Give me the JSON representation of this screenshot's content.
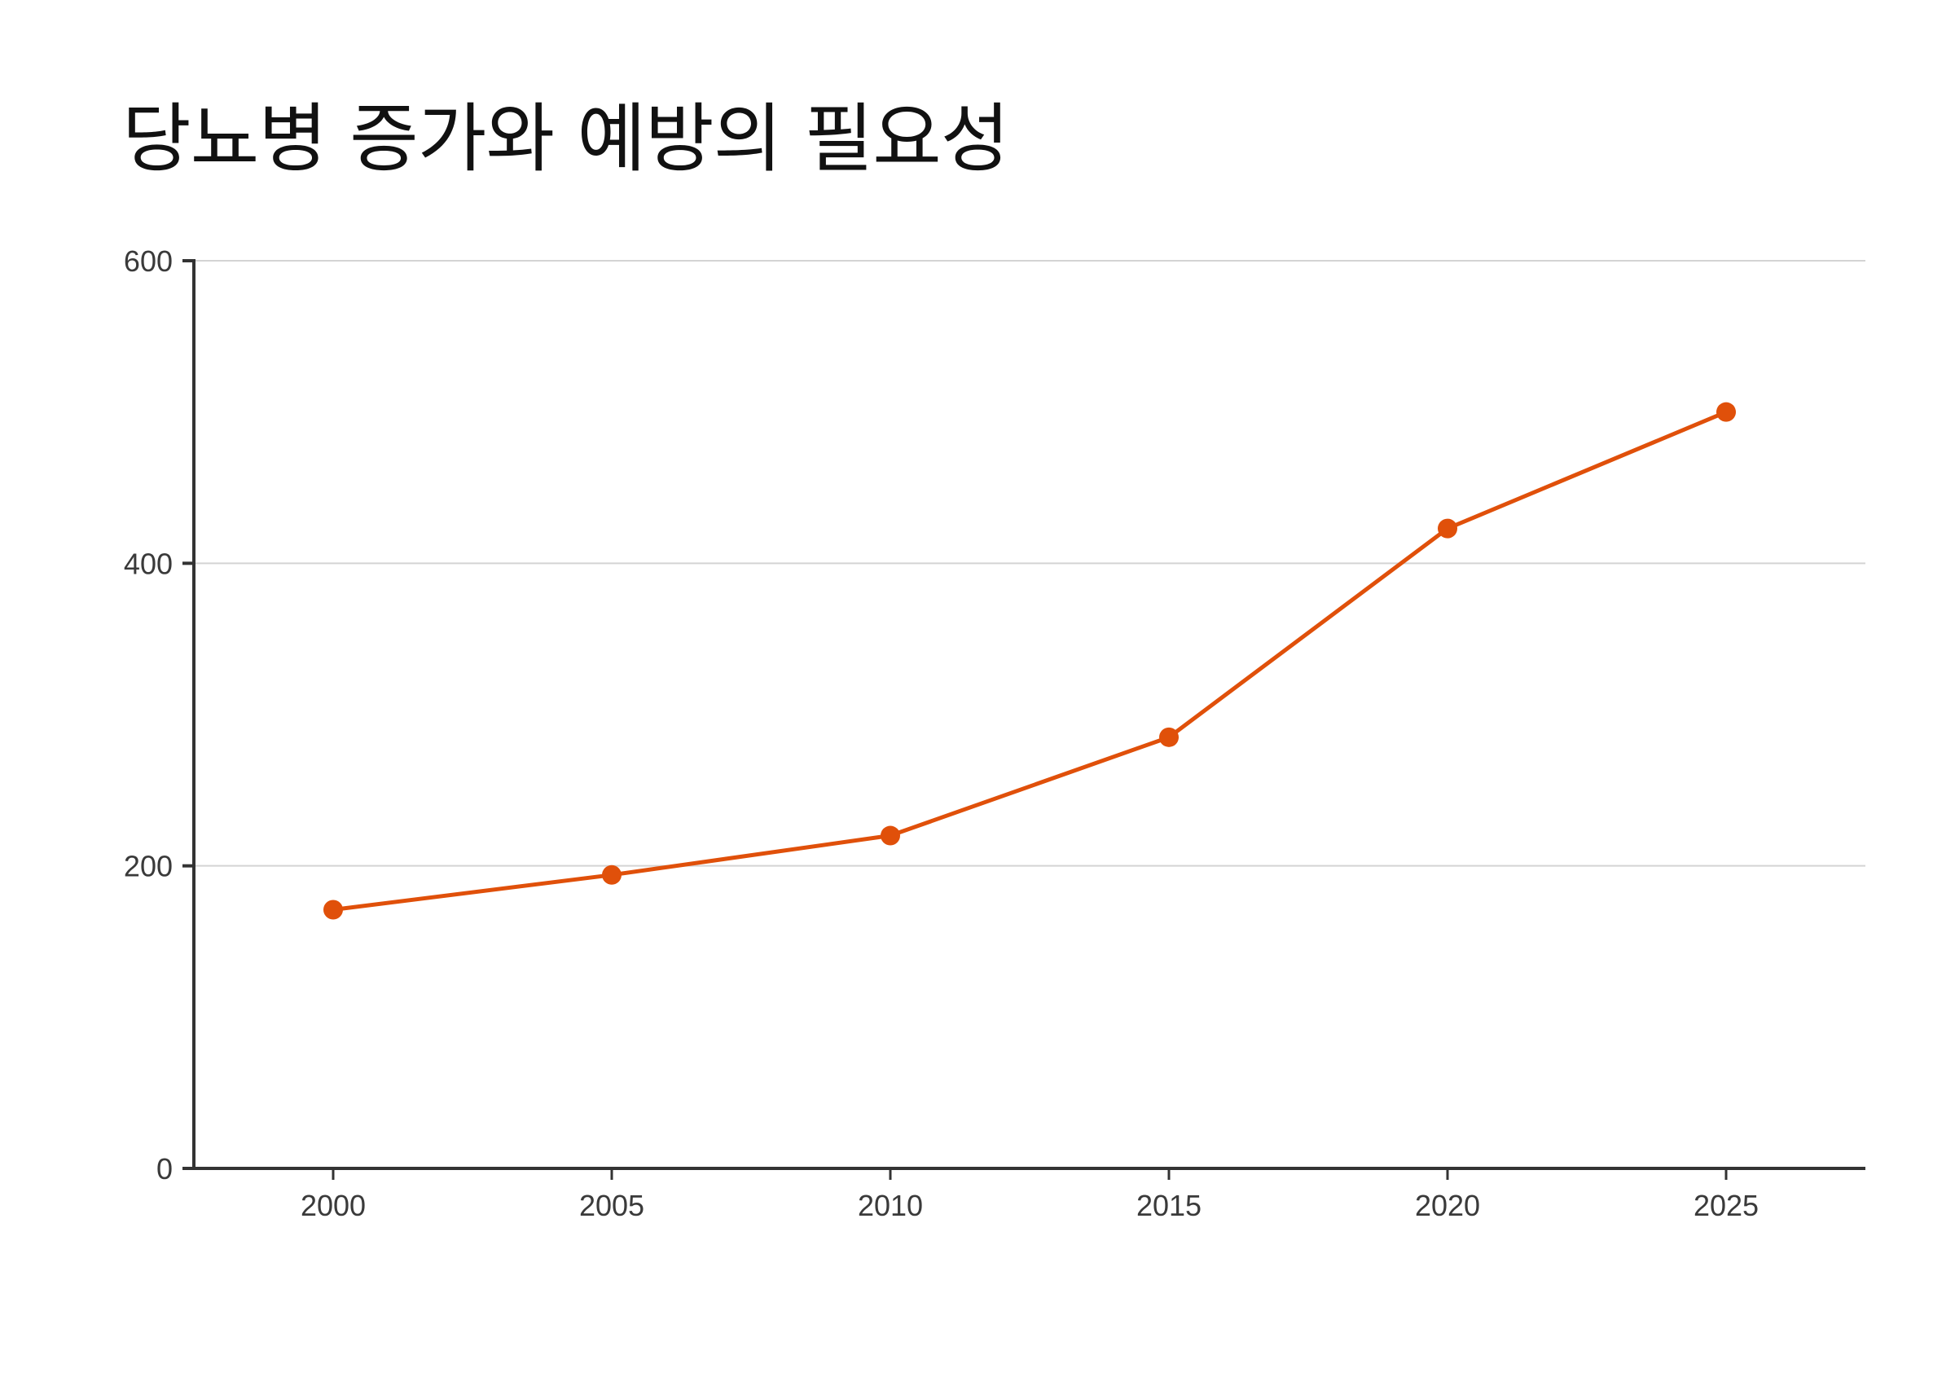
{
  "chart_data": {
    "type": "line",
    "title": "당뇨병 증가와 예방의 필요성",
    "xlabel": "",
    "ylabel": "",
    "x": [
      2000,
      2005,
      2010,
      2015,
      2020,
      2025
    ],
    "series": [
      {
        "values": [
          171,
          194,
          220,
          285,
          423,
          500
        ],
        "color": "#e0500a"
      }
    ],
    "xlim": [
      1997.5,
      2027.5
    ],
    "ylim": [
      0,
      600
    ],
    "y_ticks": [
      0,
      200,
      400,
      600
    ],
    "x_ticks": [
      2000,
      2005,
      2010,
      2015,
      2020,
      2025
    ],
    "grid": "horizontal",
    "legend": "none",
    "colors": {
      "line": "#e0500a",
      "grid": "#d4d4d4",
      "axis": "#333333"
    }
  }
}
